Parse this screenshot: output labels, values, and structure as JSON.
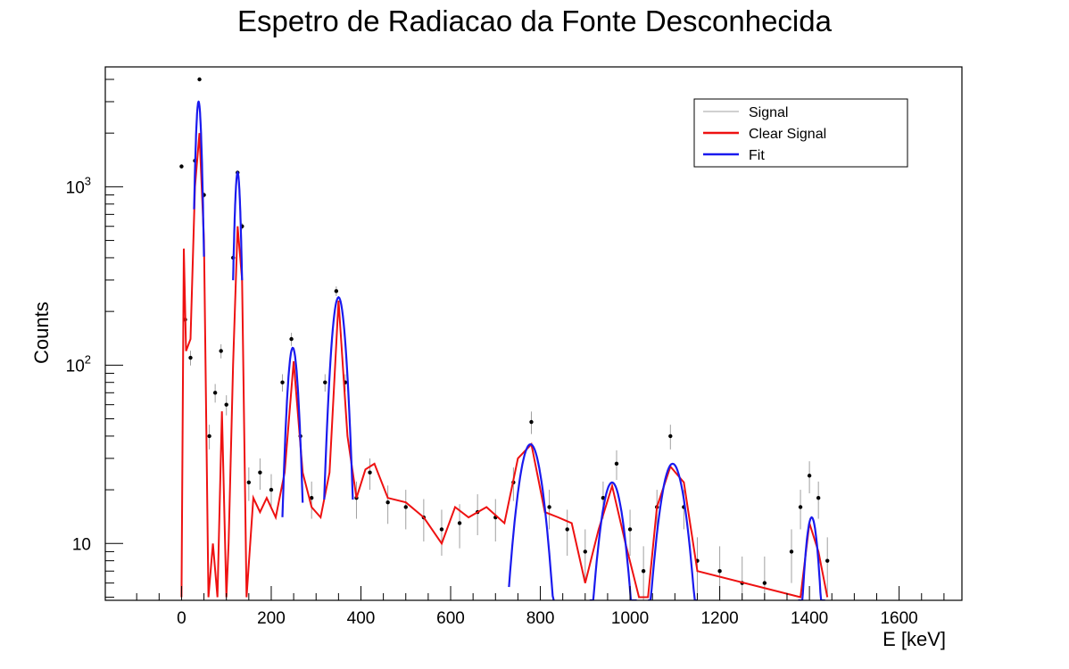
{
  "chart_data": {
    "type": "scatter",
    "title": "Espetro de Radiacao da Fonte Desconhecida",
    "xlabel": "E [keV]",
    "ylabel": "Counts",
    "xlim": [
      -170,
      1740
    ],
    "ylim": [
      4.8,
      4700
    ],
    "yscale": "log",
    "grid": false,
    "legend_position": "top-right",
    "x_ticks": [
      0,
      200,
      400,
      600,
      800,
      1000,
      1200,
      1400,
      1600
    ],
    "y_ticks": [
      {
        "base": "10",
        "exp": "",
        "value": 10
      },
      {
        "base": "10",
        "exp": "2",
        "value": 100
      },
      {
        "base": "10",
        "exp": "3",
        "value": 1000
      }
    ],
    "colors": {
      "signal": "#a0a0a0",
      "signal_points": "#000000",
      "clear_signal": "#ee1111",
      "fit": "#1a1aee"
    },
    "series": [
      {
        "name": "Signal",
        "style": "gray error bars with black points",
        "x": [
          0,
          8,
          20,
          30,
          40,
          50,
          62,
          75,
          88,
          100,
          115,
          125,
          135,
          150,
          175,
          200,
          225,
          245,
          265,
          290,
          320,
          345,
          365,
          390,
          420,
          460,
          500,
          540,
          580,
          620,
          660,
          700,
          740,
          780,
          820,
          860,
          900,
          940,
          970,
          1000,
          1030,
          1060,
          1090,
          1120,
          1150,
          1200,
          1250,
          1300,
          1360,
          1380,
          1400,
          1420,
          1440
        ],
        "y": [
          1300,
          180,
          110,
          1400,
          4000,
          900,
          40,
          70,
          120,
          60,
          400,
          1200,
          600,
          22,
          25,
          20,
          80,
          140,
          40,
          18,
          80,
          260,
          80,
          18,
          25,
          17,
          16,
          14,
          12,
          13,
          15,
          14,
          22,
          48,
          16,
          12,
          9,
          18,
          28,
          12,
          7,
          16,
          40,
          16,
          8,
          7,
          6,
          6,
          9,
          16,
          24,
          18,
          8
        ]
      },
      {
        "name": "Clear Signal",
        "style": "red line",
        "x": [
          0,
          5,
          10,
          20,
          30,
          40,
          50,
          60,
          70,
          80,
          90,
          100,
          105,
          115,
          125,
          135,
          145,
          160,
          175,
          190,
          210,
          230,
          250,
          270,
          290,
          310,
          330,
          350,
          370,
          390,
          410,
          430,
          460,
          500,
          540,
          580,
          610,
          640,
          680,
          720,
          750,
          780,
          810,
          840,
          870,
          900,
          930,
          960,
          990,
          1020,
          1040,
          1060,
          1090,
          1120,
          1150,
          1380,
          1400,
          1420,
          1440
        ],
        "y": [
          5,
          450,
          120,
          140,
          1000,
          2000,
          500,
          5,
          10,
          5,
          55,
          5,
          10,
          100,
          600,
          300,
          5,
          18,
          15,
          18,
          14,
          25,
          105,
          25,
          16,
          14,
          25,
          230,
          40,
          18,
          26,
          28,
          18,
          17,
          14,
          10,
          16,
          14,
          16,
          13,
          30,
          36,
          15,
          14,
          13,
          6,
          12,
          21,
          10,
          5,
          5,
          16,
          27,
          22,
          7,
          5,
          13,
          9,
          5
        ]
      },
      {
        "name": "Fit",
        "style": "blue line",
        "fit_peaks": [
          {
            "center": 38,
            "amplitude": 3000,
            "sigma": 6,
            "range": [
              28,
              50
            ]
          },
          {
            "center": 125,
            "amplitude": 1200,
            "sigma": 6,
            "range": [
              115,
              135
            ]
          },
          {
            "center": 248,
            "amplitude": 125,
            "sigma": 11,
            "range": [
              225,
              270
            ]
          },
          {
            "center": 350,
            "amplitude": 240,
            "sigma": 14,
            "range": [
              318,
              382
            ]
          },
          {
            "center": 778,
            "amplitude": 36,
            "sigma": 25,
            "range": [
              730,
              830
            ]
          },
          {
            "center": 960,
            "amplitude": 22,
            "sigma": 24,
            "range": [
              910,
              1015
            ]
          },
          {
            "center": 1095,
            "amplitude": 28,
            "sigma": 26,
            "range": [
              1040,
              1150
            ]
          },
          {
            "center": 1405,
            "amplitude": 14,
            "sigma": 14,
            "range": [
              1375,
              1435
            ]
          }
        ]
      }
    ]
  }
}
